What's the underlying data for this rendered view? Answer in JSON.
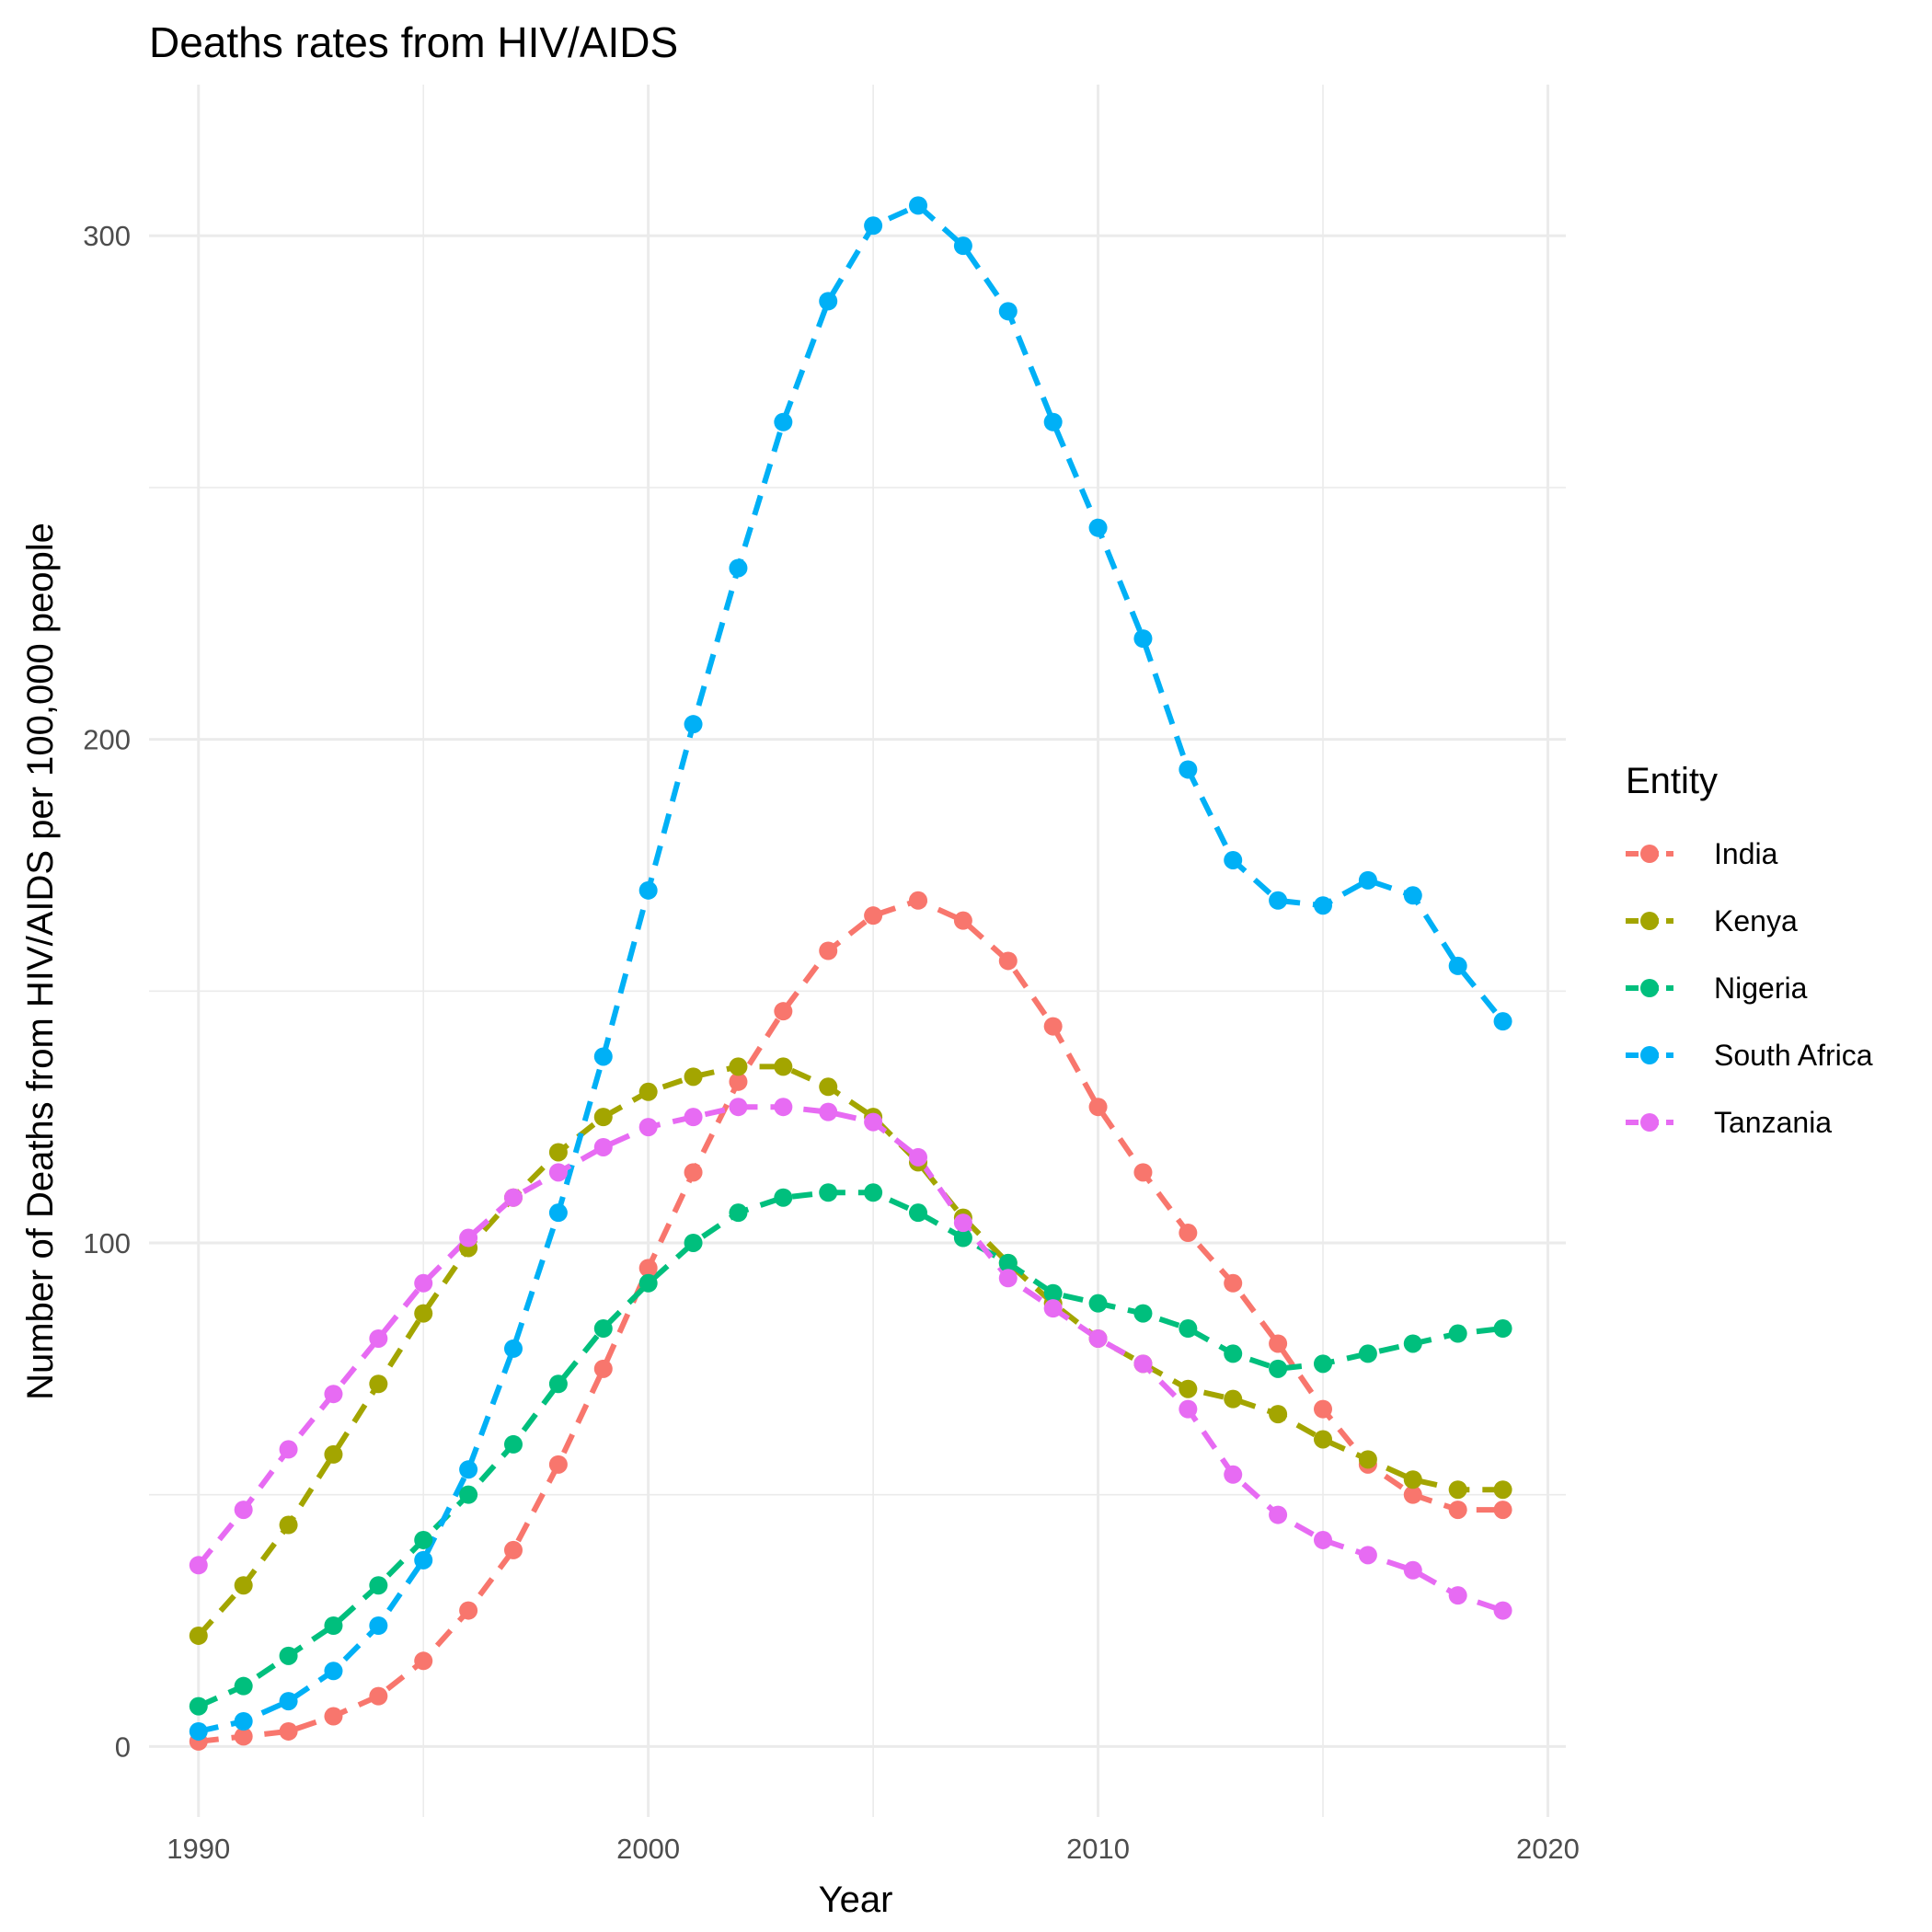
{
  "chart_data": {
    "type": "line",
    "title": "Deaths rates from HIV/AIDS",
    "xlabel": "Year",
    "ylabel": "Number of Deaths from HIV/AIDS per 100,000 people",
    "xlim": [
      1988.9,
      2020.4
    ],
    "ylim": [
      -14,
      330
    ],
    "xticks": [
      1990,
      2000,
      2010,
      2020
    ],
    "yticks": [
      0,
      100,
      200,
      300
    ],
    "x_minor": [
      1995,
      2005,
      2015
    ],
    "y_minor": [
      50,
      150,
      250
    ],
    "grid": true,
    "legend": {
      "title": "Entity",
      "position": "right"
    },
    "x": [
      1990,
      1991,
      1992,
      1993,
      1994,
      1995,
      1996,
      1997,
      1998,
      1999,
      2000,
      2001,
      2002,
      2003,
      2004,
      2005,
      2006,
      2007,
      2008,
      2009,
      2010,
      2011,
      2012,
      2013,
      2014,
      2015,
      2016,
      2017,
      2018,
      2019
    ],
    "series": [
      {
        "name": "India",
        "color": "#F8766D",
        "values": [
          1,
          2,
          3,
          6,
          10,
          17,
          27,
          39,
          56,
          75,
          95,
          114,
          132,
          146,
          158,
          165,
          168,
          164,
          156,
          143,
          127,
          114,
          102,
          92,
          80,
          67,
          56,
          50,
          47,
          47
        ]
      },
      {
        "name": "Kenya",
        "color": "#A3A500",
        "values": [
          22,
          32,
          44,
          58,
          72,
          86,
          99,
          109,
          118,
          125,
          130,
          133,
          135,
          135,
          131,
          125,
          116,
          105,
          96,
          88,
          81,
          76,
          71,
          69,
          66,
          61,
          57,
          53,
          51,
          51
        ]
      },
      {
        "name": "Nigeria",
        "color": "#00BF7D",
        "values": [
          8,
          12,
          18,
          24,
          32,
          41,
          50,
          60,
          72,
          83,
          92,
          100,
          106,
          109,
          110,
          110,
          106,
          101,
          96,
          90,
          88,
          86,
          83,
          78,
          75,
          76,
          78,
          80,
          82,
          83
        ]
      },
      {
        "name": "South Africa",
        "color": "#00B0F6",
        "values": [
          3,
          5,
          9,
          15,
          24,
          37,
          55,
          79,
          106,
          137,
          170,
          203,
          234,
          263,
          287,
          302,
          306,
          298,
          285,
          263,
          242,
          220,
          194,
          176,
          168,
          167,
          172,
          169,
          155,
          144
        ]
      },
      {
        "name": "Tanzania",
        "color": "#E76BF3",
        "values": [
          36,
          47,
          59,
          70,
          81,
          92,
          101,
          109,
          114,
          119,
          123,
          125,
          127,
          127,
          126,
          124,
          117,
          104,
          93,
          87,
          81,
          76,
          67,
          54,
          46,
          41,
          38,
          35,
          30,
          27
        ]
      }
    ]
  }
}
